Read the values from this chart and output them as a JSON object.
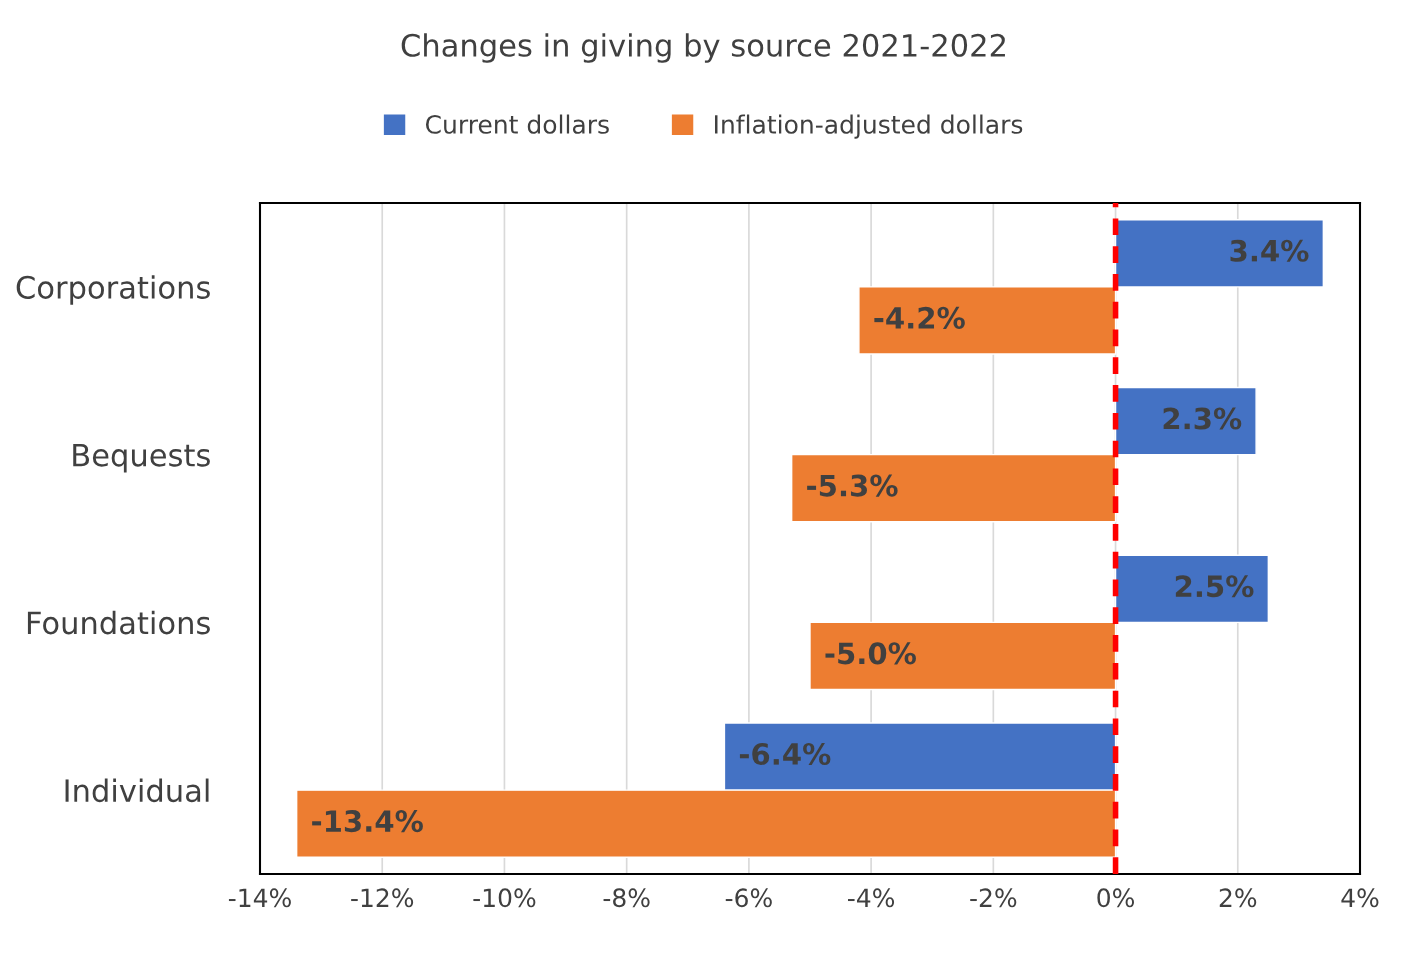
{
  "chart_data": {
    "type": "bar",
    "orientation": "horizontal",
    "title": "Changes in giving by source 2021-2022",
    "categories": [
      "Corporations",
      "Bequests",
      "Foundations",
      "Individual"
    ],
    "series": [
      {
        "name": "Current dollars",
        "color": "#4472c4",
        "values": [
          3.4,
          2.3,
          2.5,
          -6.4
        ],
        "value_labels": [
          "3.4%",
          "2.3%",
          "2.5%",
          "-6.4%"
        ]
      },
      {
        "name": "Inflation-adjusted dollars",
        "color": "#ed7d31",
        "values": [
          -4.2,
          -5.3,
          -5.0,
          -13.4
        ],
        "value_labels": [
          "-4.2%",
          "-5.3%",
          "-5.0%",
          "-13.4%"
        ]
      }
    ],
    "xlim": [
      -14,
      4
    ],
    "xticks": [
      {
        "value": -14,
        "label": "-14%"
      },
      {
        "value": -12,
        "label": "-12%"
      },
      {
        "value": -10,
        "label": "-10%"
      },
      {
        "value": -8,
        "label": "-8%"
      },
      {
        "value": -6,
        "label": "-6%"
      },
      {
        "value": -4,
        "label": "-4%"
      },
      {
        "value": -2,
        "label": "-2%"
      },
      {
        "value": 0,
        "label": "0%"
      },
      {
        "value": 2,
        "label": "2%"
      },
      {
        "value": 4,
        "label": "4%"
      }
    ],
    "grid": "x",
    "legend": "top",
    "ref_lines": [
      {
        "axis": "x",
        "value": 0,
        "color": "#ff0000",
        "line_style": "dashed"
      }
    ]
  }
}
